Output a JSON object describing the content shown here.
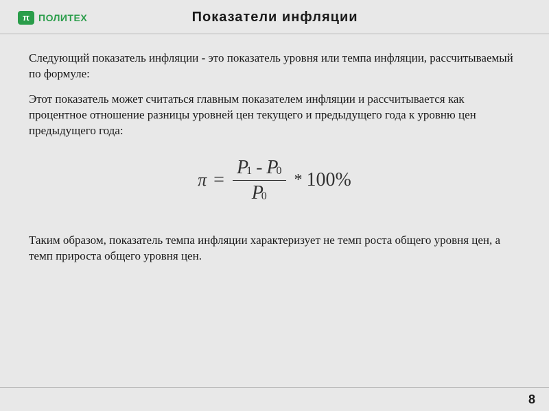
{
  "logo": {
    "icon_text": "π",
    "text": "ПОЛИТЕХ",
    "brand_color": "#2a9d4a"
  },
  "title": "Показатели инфляции",
  "paragraphs": {
    "p1": "Следующий показатель инфляции - это показатель уровня или темпа инфляции, рассчитываемый по формуле:",
    "p2": "Этот показатель может считаться главным показателем инфляции и рассчитывается как процентное отношение разницы уровней цен текущего и предыдущего года к уровню цен предыдущего года:",
    "p3": "Таким образом, показатель темпа инфляции характеризует не темп роста общего уровня цен, а темп прироста общего уровня цен."
  },
  "formula": {
    "lhs": "π",
    "eq": "=",
    "var": "P",
    "sub1": "1",
    "sub0": "0",
    "minus": "-",
    "times": "*",
    "rhs": "100%"
  },
  "page_number": "8",
  "colors": {
    "background": "#e8e8e8",
    "text": "#1a1a1a",
    "divider": "#b8b8b8"
  }
}
